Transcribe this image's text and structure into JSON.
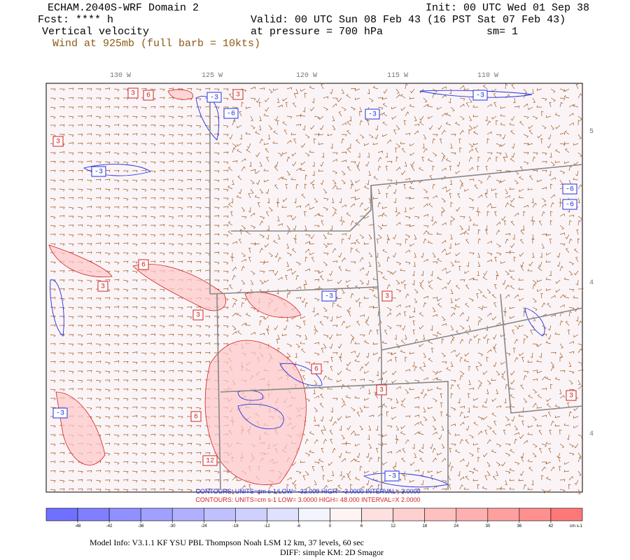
{
  "header": {
    "title": "ECHAM.2040S-WRF Domain 2",
    "init": "Init: 00 UTC Wed 01 Sep 38",
    "forecast": "Fcst: **** h",
    "valid": "Valid: 00 UTC Sun 08 Feb 43 (16 PST Sat 07 Feb 43)",
    "field": "Vertical velocity",
    "level": "at pressure =  700 hPa",
    "smoothing": "sm= 1",
    "wind": "Wind at 925mb (full barb = 10kts)"
  },
  "map": {
    "longitude_labels": [
      "130 W",
      "125 W",
      "120 W",
      "115 W",
      "110 W"
    ],
    "latitude_labels": [
      "5",
      "4",
      "4"
    ],
    "contour_labels": [
      "3",
      "6",
      "-3",
      "3",
      "-3",
      "-6",
      "-3",
      "3",
      "-3",
      "6",
      "3",
      "-3",
      "3",
      "-6",
      "3",
      "-3",
      "6",
      "12",
      "3",
      "-3",
      "3",
      "6",
      "-6"
    ],
    "contour_info_negative": "CONTOURS:  UNITS=cm s-1  LOW= -33.000      HIGH= -3.0000      INTERVAL= 3.0000",
    "contour_info_positive": "CONTOURS:  UNITS=cm s-1  LOW=  3.0000      HIGH=  48.000      INTERVAL=X  2.0000"
  },
  "colorbar": {
    "ticks": [
      -48,
      -42,
      -36,
      -30,
      -24,
      -18,
      -12,
      -6,
      0,
      6,
      12,
      18,
      24,
      30,
      36,
      42
    ],
    "unit": "cm s-1",
    "colors": [
      "#7070ff",
      "#8080ff",
      "#9090ff",
      "#a0a0ff",
      "#b0b0ff",
      "#c0c0ff",
      "#d0d0ff",
      "#e0e0ff",
      "#f4f4ff",
      "#fff4f4",
      "#ffe0e0",
      "#ffd0d0",
      "#ffc0c0",
      "#ffb0b0",
      "#ffa0a0",
      "#ff9090",
      "#ff7878"
    ]
  },
  "footer": {
    "model_info": "Model Info: V3.1.1    KF      YSU PBL   Thompson     Noah LSM   12 km,    37 levels,    60 sec",
    "diffusion": "DIFF: simple KM: 2D Smagor"
  }
}
